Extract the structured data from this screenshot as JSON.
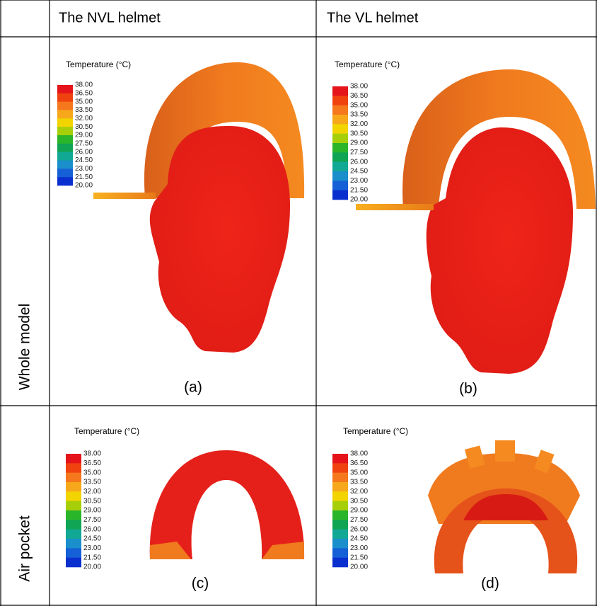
{
  "header": {
    "columns": [
      "The NVL helmet",
      "The VL helmet"
    ]
  },
  "rows": [
    "Whole model",
    "Air pocket"
  ],
  "legend": {
    "title": "Temperature (°C)",
    "ticks": [
      "38.00",
      "36.50",
      "35.00",
      "33.50",
      "32.00",
      "30.50",
      "29.00",
      "27.50",
      "26.00",
      "24.50",
      "23.00",
      "21.50",
      "20.00"
    ],
    "colors": [
      "#e5141b",
      "#f0420f",
      "#f5781c",
      "#f7a81a",
      "#f2d400",
      "#a6cf0a",
      "#2bb52b",
      "#10a455",
      "#11a896",
      "#1a8fcb",
      "#1560d6",
      "#0a2fcf"
    ]
  },
  "panels": [
    {
      "label": "(a)"
    },
    {
      "label": "(b)"
    },
    {
      "label": "(c)"
    },
    {
      "label": "(d)"
    }
  ]
}
